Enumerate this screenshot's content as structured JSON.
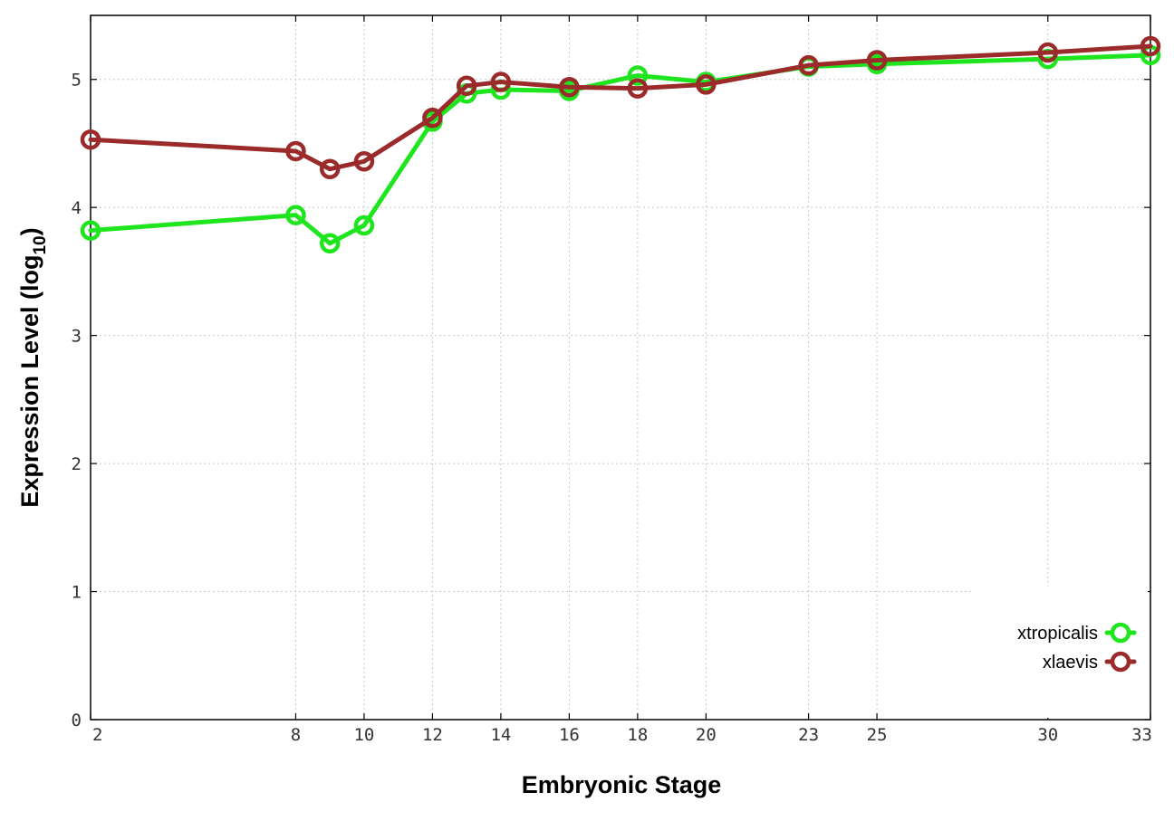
{
  "chart_data": {
    "type": "line",
    "title": "",
    "xlabel": "Embryonic Stage",
    "ylabel_main": "Expression Level (log",
    "ylabel_sub": "10",
    "ylabel_end": ")",
    "x_ticks": [
      2,
      8,
      10,
      12,
      14,
      16,
      18,
      20,
      23,
      25,
      30,
      33
    ],
    "y_ticks": [
      0,
      1,
      2,
      3,
      4,
      5
    ],
    "ylim": [
      0,
      5.5
    ],
    "grid": true,
    "legend_position": "bottom-right",
    "x": [
      2,
      8,
      9,
      10,
      12,
      13,
      14,
      16,
      18,
      20,
      23,
      25,
      30,
      33
    ],
    "series": [
      {
        "name": "xtropicalis",
        "color": "#1fe51f",
        "values": [
          3.82,
          3.94,
          3.72,
          3.86,
          4.67,
          4.89,
          4.92,
          4.91,
          5.03,
          4.98,
          5.1,
          5.12,
          5.16,
          5.19
        ]
      },
      {
        "name": "xlaevis",
        "color": "#9b2b2b",
        "values": [
          4.53,
          4.44,
          4.3,
          4.36,
          4.7,
          4.95,
          4.98,
          4.94,
          4.93,
          4.96,
          5.11,
          5.15,
          5.21,
          5.26
        ]
      }
    ]
  }
}
